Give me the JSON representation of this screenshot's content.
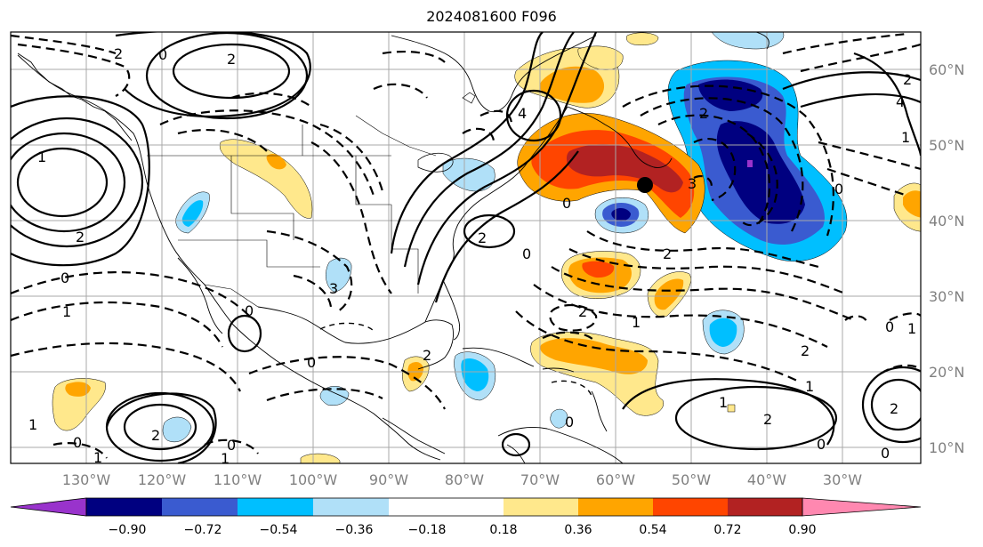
{
  "title": "2024081600 F096",
  "lat_labels": [
    "60°N",
    "50°N",
    "40°N",
    "30°N",
    "20°N",
    "10°N"
  ],
  "lon_labels": [
    "130°W",
    "120°W",
    "110°W",
    "100°W",
    "90°W",
    "80°W",
    "70°W",
    "60°W",
    "50°W",
    "40°W",
    "30°W"
  ],
  "colorbar": {
    "colors": [
      "#9933cc",
      "#000080",
      "#3a5bd0",
      "#00bfff",
      "#b0e0f8",
      "#ffffff",
      "#ffe88c",
      "#ffa500",
      "#ff4500",
      "#b22222",
      "#ff88b0"
    ],
    "ticks": [
      "−0.90",
      "−0.72",
      "−0.54",
      "−0.36",
      "−0.18",
      "0.18",
      "0.36",
      "0.54",
      "0.72",
      "0.90"
    ]
  },
  "contour_labels": [
    "2",
    "2",
    "0",
    "1",
    "2",
    "4",
    "2",
    "0",
    "2",
    "1",
    "0",
    "1",
    "2",
    "1",
    "0",
    "1",
    "0",
    "2",
    "0",
    "1",
    "0",
    "4",
    "2",
    "3",
    "0",
    "0",
    "2",
    "2",
    "0",
    "1",
    "1",
    "2",
    "1",
    "2",
    "0",
    "0",
    "1",
    "3",
    "2",
    "0"
  ],
  "marker": "storm-center"
}
